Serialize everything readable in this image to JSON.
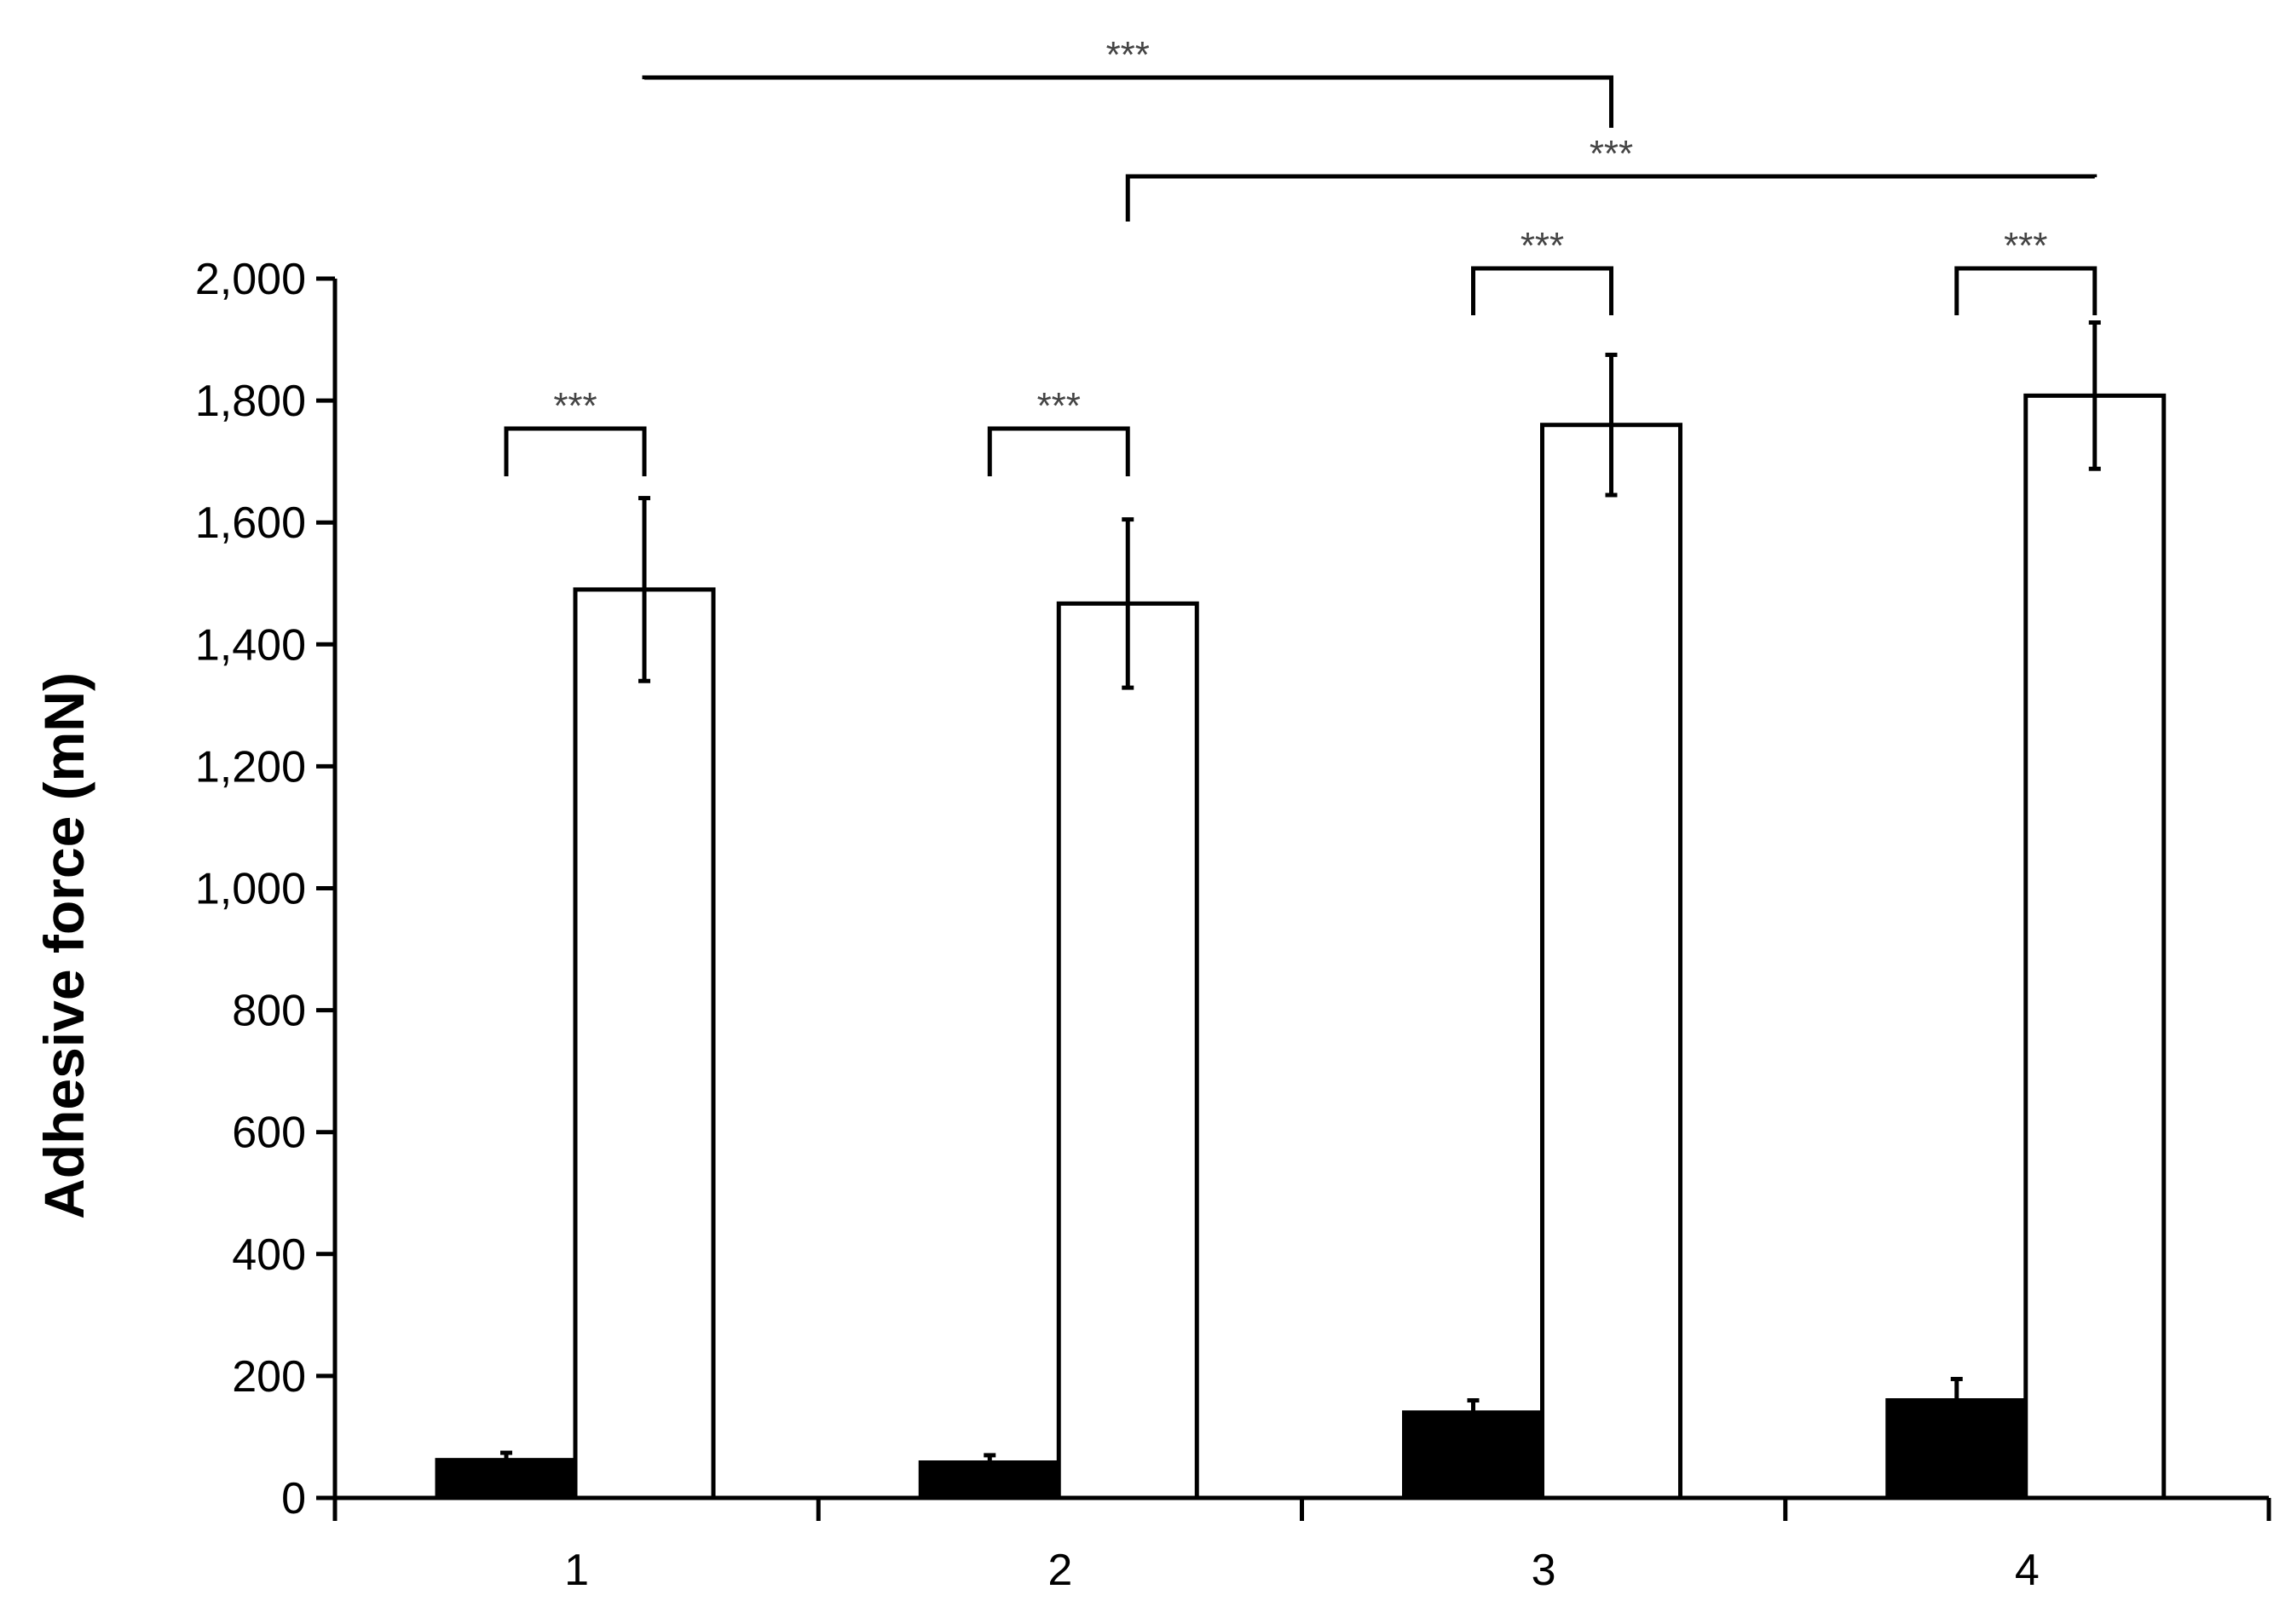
{
  "chart_data": {
    "type": "bar",
    "title": "",
    "xlabel": "",
    "ylabel": "Adhesive force (mN)",
    "categories": [
      "1",
      "2",
      "3",
      "4"
    ],
    "ylim": [
      0,
      2000
    ],
    "yticks": [
      0,
      200,
      400,
      600,
      800,
      1000,
      1200,
      1400,
      1600,
      1800,
      2000
    ],
    "ytick_labels": [
      "0",
      "200",
      "400",
      "600",
      "800",
      "1,000",
      "1,200",
      "1,400",
      "1,600",
      "1,800",
      "2,000"
    ],
    "grid": false,
    "legend": false,
    "series": [
      {
        "fill": "#000000",
        "values": [
          62,
          58,
          140,
          160
        ],
        "errors": [
          12,
          12,
          20,
          35
        ]
      },
      {
        "fill": "#ffffff",
        "values": [
          1490,
          1467,
          1760,
          1808
        ],
        "errors": [
          150,
          138,
          115,
          120
        ]
      }
    ],
    "significance": [
      {
        "label": "***",
        "from": {
          "category": 0,
          "series": 0
        },
        "to": {
          "category": 0,
          "series": 1
        }
      },
      {
        "label": "***",
        "from": {
          "category": 1,
          "series": 0
        },
        "to": {
          "category": 1,
          "series": 1
        }
      },
      {
        "label": "***",
        "from": {
          "category": 2,
          "series": 0
        },
        "to": {
          "category": 2,
          "series": 1
        }
      },
      {
        "label": "***",
        "from": {
          "category": 3,
          "series": 0
        },
        "to": {
          "category": 3,
          "series": 1
        }
      },
      {
        "label": "***",
        "from": {
          "category": 1,
          "series": 1
        },
        "to": {
          "category": 3,
          "series": 1
        }
      },
      {
        "label": "***",
        "from": {
          "category": 0,
          "series": 1
        },
        "to": {
          "category": 2,
          "series": 1
        }
      }
    ]
  }
}
